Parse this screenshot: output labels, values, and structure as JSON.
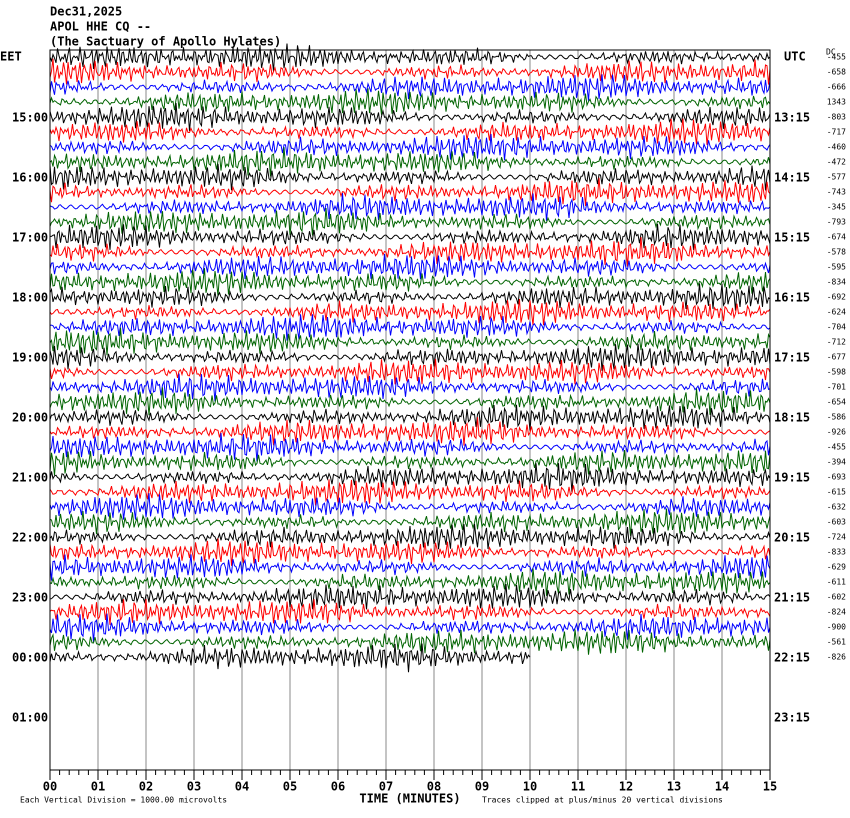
{
  "header": {
    "date": "Dec31,2025",
    "station": "APOL HHE CQ --",
    "site": "(The Sactuary of Apollo Hylates)"
  },
  "left_zone": "EET",
  "right_zone": "UTC",
  "left_labels": [
    "15:00",
    "16:00",
    "17:00",
    "18:00",
    "19:00",
    "20:00",
    "21:00",
    "22:00",
    "23:00",
    "00:00",
    "01:00"
  ],
  "right_labels": [
    "13:15",
    "14:15",
    "15:15",
    "16:15",
    "17:15",
    "18:15",
    "19:15",
    "20:15",
    "21:15",
    "22:15",
    "23:15"
  ],
  "dc_header": "DC",
  "dc_values": [
    "-455",
    "-658",
    "-666",
    "1343",
    "-803",
    "-717",
    "-460",
    "-472",
    "-577",
    "-743",
    "-345",
    "-793",
    "-674",
    "-578",
    "-595",
    "-834",
    "-692",
    "-624",
    "-704",
    "-712",
    "-677",
    "-598",
    "-701",
    "-654",
    "-586",
    "-926",
    "-455",
    "-394",
    "-693",
    "-615",
    "-632",
    "-603",
    "-724",
    "-833",
    "-629",
    "-611",
    "-602",
    "-824",
    "-900",
    "-561",
    "-826"
  ],
  "trace_colors": [
    "#000000",
    "#ff0000",
    "#0000ff",
    "#006400"
  ],
  "x_ticks": [
    "00",
    "01",
    "02",
    "03",
    "04",
    "05",
    "06",
    "07",
    "08",
    "09",
    "10",
    "11",
    "12",
    "13",
    "14",
    "15"
  ],
  "x_label": "TIME (MINUTES)",
  "scale_note": "Each Vertical Division = 1000.00 microvolts",
  "clip_note": "Traces clipped at plus/minus 20 vertical divisions"
}
